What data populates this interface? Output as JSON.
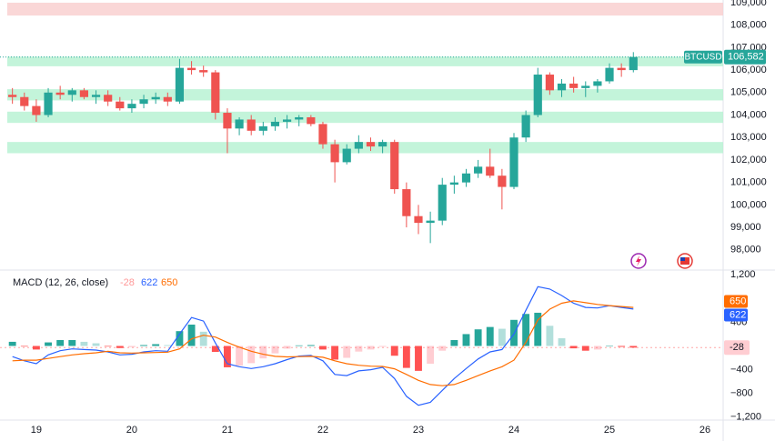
{
  "chart_data": [
    {
      "type": "candlestick",
      "symbol": "BTCUSD",
      "x": [
        18.75,
        18.875,
        19,
        19.125,
        19.25,
        19.375,
        19.5,
        19.625,
        19.75,
        19.875,
        20,
        20.125,
        20.25,
        20.375,
        20.5,
        20.625,
        20.75,
        20.875,
        21,
        21.125,
        21.25,
        21.375,
        21.5,
        21.625,
        21.75,
        21.875,
        22,
        22.125,
        22.25,
        22.375,
        22.5,
        22.625,
        22.75,
        22.875,
        23,
        23.125,
        23.25,
        23.375,
        23.5,
        23.625,
        23.75,
        23.875,
        24,
        24.125,
        24.25,
        24.375,
        24.5,
        24.625,
        24.75,
        24.875,
        25,
        25.125,
        25.25
      ],
      "open": [
        104900,
        104800,
        104400,
        104000,
        105000,
        104900,
        105100,
        104800,
        104900,
        104600,
        104300,
        104500,
        104700,
        104800,
        104600,
        106100,
        106000,
        105900,
        104100,
        103400,
        103800,
        103300,
        103500,
        103700,
        103800,
        103900,
        103600,
        102700,
        101900,
        102500,
        102800,
        102600,
        102800,
        100700,
        99500,
        99200,
        99300,
        100900,
        101000,
        101400,
        101700,
        101300,
        100800,
        103000,
        104000,
        105800,
        105100,
        105400,
        105200,
        105300,
        105500,
        106100,
        106000
      ],
      "high": [
        105200,
        105000,
        104700,
        105200,
        105300,
        105200,
        105200,
        105100,
        105100,
        104800,
        104700,
        104900,
        105000,
        105000,
        106500,
        106400,
        106200,
        106000,
        104300,
        103900,
        104000,
        103700,
        103900,
        104000,
        104000,
        104000,
        103700,
        102900,
        102700,
        103100,
        103000,
        102900,
        102900,
        101000,
        100000,
        99700,
        101200,
        101300,
        101600,
        102000,
        102500,
        101600,
        103200,
        104200,
        106100,
        105900,
        105600,
        105700,
        105500,
        105600,
        106300,
        106300,
        106800
      ],
      "low": [
        104500,
        104200,
        103700,
        103900,
        104700,
        104600,
        104700,
        104500,
        104400,
        104200,
        104100,
        104300,
        104500,
        104400,
        104500,
        105800,
        105700,
        103800,
        102300,
        103100,
        103100,
        103100,
        103300,
        103400,
        103500,
        103500,
        102500,
        101000,
        101800,
        102300,
        102400,
        102300,
        100500,
        99000,
        98700,
        98300,
        99100,
        100500,
        100800,
        101200,
        101200,
        99800,
        100700,
        102800,
        103900,
        104900,
        104800,
        105000,
        104800,
        105000,
        105400,
        105700,
        105900
      ],
      "close": [
        104800,
        104400,
        104000,
        105000,
        104900,
        105100,
        104800,
        104900,
        104600,
        104300,
        104500,
        104700,
        104800,
        104600,
        106100,
        106000,
        105900,
        104100,
        103400,
        103800,
        103300,
        103500,
        103700,
        103800,
        103900,
        103600,
        102700,
        101900,
        102500,
        102800,
        102600,
        102800,
        100700,
        99500,
        99200,
        99300,
        100900,
        101000,
        101400,
        101700,
        101300,
        100800,
        103000,
        104000,
        105800,
        105100,
        105400,
        105200,
        105300,
        105500,
        106100,
        106000,
        106582
      ],
      "up_color": "#26a69a",
      "down_color": "#ef5350",
      "xlim": [
        18.62,
        26.19
      ],
      "xticks": [
        19,
        20,
        21,
        22,
        23,
        24,
        25,
        26
      ],
      "ylim": [
        97100,
        109120
      ],
      "yticks": [
        {
          "value": 109000,
          "label": "109,000"
        },
        {
          "value": 108000,
          "label": "108,000"
        },
        {
          "value": 107000,
          "label": "107,000"
        },
        {
          "value": 106000,
          "label": "106,000"
        },
        {
          "value": 105000,
          "label": "105,000"
        },
        {
          "value": 104000,
          "label": "104,000"
        },
        {
          "value": 103000,
          "label": "103,000"
        },
        {
          "value": 102000,
          "label": "102,000"
        },
        {
          "value": 101000,
          "label": "101,000"
        },
        {
          "value": 100000,
          "label": "100,000"
        },
        {
          "value": 99000,
          "label": "99,000"
        },
        {
          "value": 98000,
          "label": "98,000"
        }
      ],
      "grid": false,
      "price_line": {
        "value": 106582,
        "label": "106,582",
        "color": "#26a69a"
      },
      "zones": [
        {
          "range": [
            108430,
            109000
          ],
          "color": "#f9d0d0"
        },
        {
          "range": [
            106170,
            106600
          ],
          "color": "#b9f2d3"
        },
        {
          "range": [
            104650,
            105150
          ],
          "color": "#b9f2d3"
        },
        {
          "range": [
            103650,
            104150
          ],
          "color": "#b9f2d3"
        },
        {
          "range": [
            102300,
            102800
          ],
          "color": "#b9f2d3"
        }
      ]
    },
    {
      "type": "macd",
      "title": "MACD (12, 26, close)",
      "x": [
        18.75,
        18.875,
        19,
        19.125,
        19.25,
        19.375,
        19.5,
        19.625,
        19.75,
        19.875,
        20,
        20.125,
        20.25,
        20.375,
        20.5,
        20.625,
        20.75,
        20.875,
        21,
        21.125,
        21.25,
        21.375,
        21.5,
        21.625,
        21.75,
        21.875,
        22,
        22.125,
        22.25,
        22.375,
        22.5,
        22.625,
        22.75,
        22.875,
        23,
        23.125,
        23.25,
        23.375,
        23.5,
        23.625,
        23.75,
        23.875,
        24,
        24.125,
        24.25,
        24.375,
        24.5,
        24.625,
        24.75,
        24.875,
        25,
        25.125,
        25.25
      ],
      "ylim": [
        -1250,
        1280
      ],
      "yticks": [
        {
          "value": 1200,
          "label": "1,200"
        },
        400,
        {
          "value": -400,
          "label": "−400"
        },
        {
          "value": -800,
          "label": "−800"
        },
        {
          "value": -1200,
          "label": "−1,200"
        }
      ],
      "series": [
        {
          "style": "histogram",
          "colors": [
            "#26a69a",
            "#b2dfdb",
            "#ff5252",
            "#ffcdd2"
          ],
          "values": [
            70,
            -10,
            -60,
            60,
            100,
            100,
            70,
            45,
            -10,
            -35,
            -20,
            15,
            30,
            15,
            250,
            360,
            240,
            -100,
            -360,
            -330,
            -290,
            -210,
            -125,
            -45,
            10,
            15,
            -60,
            -230,
            -200,
            -95,
            -60,
            -15,
            -165,
            -370,
            -420,
            -300,
            -80,
            100,
            200,
            280,
            320,
            290,
            440,
            540,
            560,
            340,
            130,
            -40,
            -80,
            -60,
            0,
            -15,
            -28
          ]
        },
        {
          "style": "line",
          "color": "#2962ff",
          "values": [
            -180,
            -250,
            -300,
            -150,
            -80,
            -50,
            -60,
            -70,
            -100,
            -150,
            -140,
            -100,
            -80,
            -90,
            200,
            480,
            420,
            50,
            -300,
            -350,
            -380,
            -350,
            -300,
            -230,
            -170,
            -160,
            -250,
            -480,
            -500,
            -420,
            -400,
            -360,
            -550,
            -850,
            -1000,
            -950,
            -750,
            -550,
            -380,
            -220,
            -100,
            -60,
            200,
            600,
            1000,
            960,
            850,
            720,
            650,
            640,
            680,
            650,
            622
          ]
        },
        {
          "style": "line",
          "color": "#ff6d00",
          "values": [
            -250,
            -240,
            -240,
            -210,
            -180,
            -150,
            -130,
            -115,
            -90,
            -115,
            -120,
            -115,
            -110,
            -105,
            -50,
            120,
            180,
            150,
            60,
            -20,
            -90,
            -140,
            -175,
            -185,
            -180,
            -175,
            -190,
            -250,
            -300,
            -325,
            -340,
            -345,
            -385,
            -480,
            -580,
            -650,
            -670,
            -650,
            -580,
            -500,
            -420,
            -350,
            -240,
            60,
            440,
            620,
            720,
            760,
            730,
            700,
            680,
            665,
            650
          ]
        }
      ]
    }
  ]
}
